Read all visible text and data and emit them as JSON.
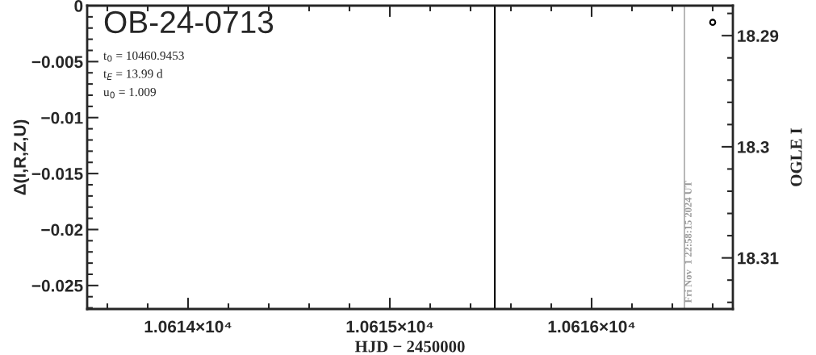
{
  "chart_data": {
    "type": "scatter",
    "title": "OB-24-0713",
    "xlabel": "HJD − 2450000",
    "ylabel": "Δ(I,R,Z,U)",
    "y2label": "OGLE I",
    "annotations": [
      "t$_{0}$ = 10460.9453",
      "t$_{E}$ = 13.99 d",
      "u$_{0}$ = 1.009",
      "Fri Nov  1 22:58:15 2024 UT"
    ],
    "series": [
      {
        "axis": "y2",
        "x": [
          10616.6
        ],
        "values": [
          18.2888
        ],
        "color": "#000000"
      }
    ],
    "xlim": [
      10613.5,
      10616.7
    ],
    "xticks": [
      {
        "value": 10614,
        "label": "1.0614×10⁴"
      },
      {
        "value": 10615,
        "label": "1.0615×10⁴"
      },
      {
        "value": 10616,
        "label": "1.0616×10⁴"
      }
    ],
    "ylim": [
      -0.0271,
      0
    ],
    "yticks": [
      {
        "value": 0,
        "label": "0"
      },
      {
        "value": -0.005,
        "label": "−0.005"
      },
      {
        "value": -0.01,
        "label": "−0.01"
      },
      {
        "value": -0.015,
        "label": "−0.015"
      },
      {
        "value": -0.02,
        "label": "−0.02"
      },
      {
        "value": -0.025,
        "label": "−0.025"
      }
    ],
    "y2lim": [
      18.3146,
      18.2873
    ],
    "y2ticks": [
      18.29,
      18.3,
      18.31
    ],
    "ref_lines": [
      {
        "axis": "x",
        "value": 10615.52,
        "color": "#000000"
      },
      {
        "axis": "x",
        "value": 10616.46,
        "color": "#999999"
      }
    ],
    "marker": "circle",
    "grid": false,
    "legend": false
  }
}
